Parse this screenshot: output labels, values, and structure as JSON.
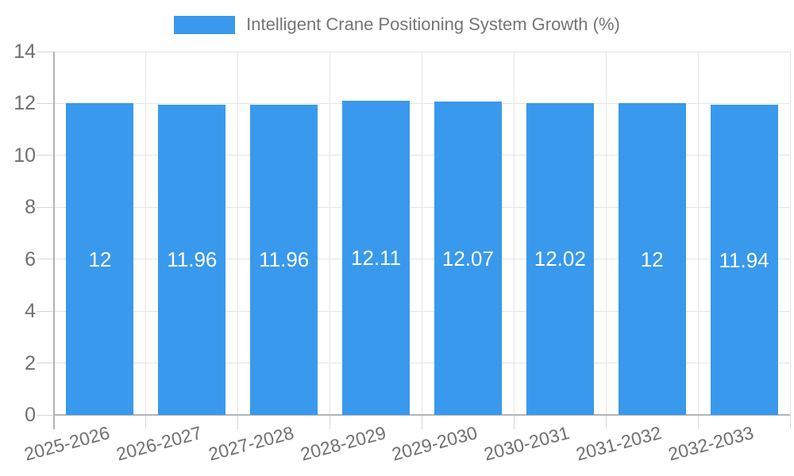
{
  "legend": {
    "position": "top",
    "swatch_color": "#3999ec"
  },
  "chart_data": {
    "type": "bar",
    "title": "Intelligent Crane Positioning System Growth (%)",
    "categories": [
      "2025-2026",
      "2026-2027",
      "2027-2028",
      "2028-2029",
      "2029-2030",
      "2030-2031",
      "2031-2032",
      "2032-2033"
    ],
    "values": [
      12,
      11.96,
      11.96,
      12.11,
      12.07,
      12.02,
      12,
      11.94
    ],
    "bar_labels": [
      "12",
      "11.96",
      "11.96",
      "12.11",
      "12.07",
      "12.02",
      "12",
      "11.94"
    ],
    "xlabel": "",
    "ylabel": "",
    "ylim": [
      0,
      14
    ],
    "yticks": [
      0,
      2,
      4,
      6,
      8,
      10,
      12,
      14
    ],
    "grid": true,
    "legend_position": "top",
    "bar_color": "#3999ec",
    "value_label_color": "#ffffff"
  },
  "colors": {
    "axis_line": "#b3b3b3",
    "gridline": "#e4e4e4",
    "tick_mark": "#d6d6d6",
    "tick_label": "#707070",
    "title_text": "#757575",
    "background": "#ffffff"
  }
}
